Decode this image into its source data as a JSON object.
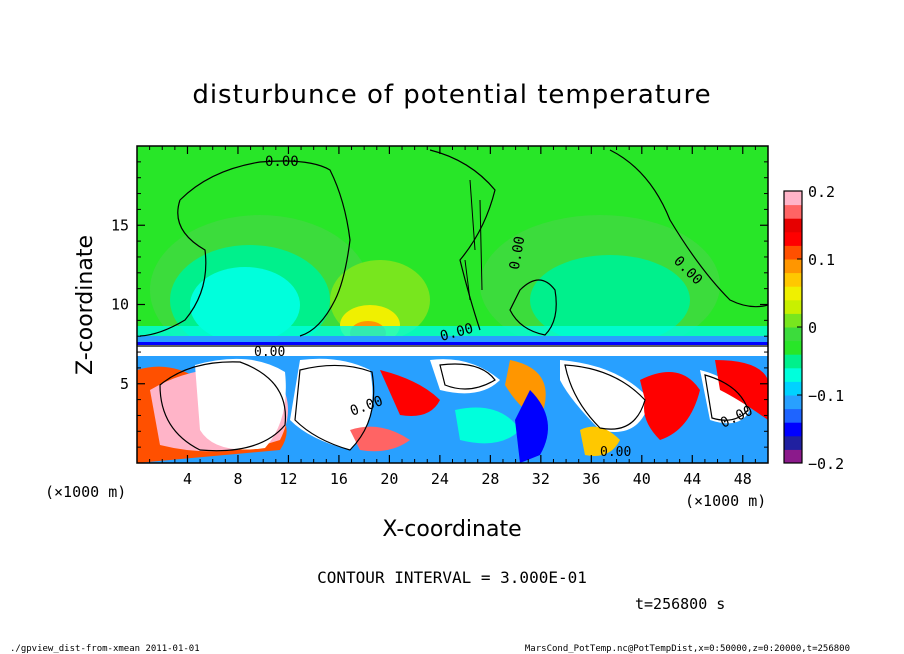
{
  "chart_data": {
    "type": "heatmap",
    "title": "disturbunce of potential temperature",
    "xlabel": "X-coordinate",
    "ylabel": "Z-coordinate",
    "x_unit": "(×1000 m)",
    "y_unit": "(×1000 m)",
    "xlim": [
      0,
      50
    ],
    "ylim": [
      0,
      20
    ],
    "x_ticks": [
      4,
      8,
      12,
      16,
      20,
      24,
      28,
      32,
      36,
      40,
      44,
      48
    ],
    "y_ticks": [
      5,
      10,
      15
    ],
    "colorbar": {
      "min": -0.2,
      "max": 0.2,
      "ticks": [
        "0.2",
        "0.1",
        "0",
        "−0.1",
        "−0.2"
      ],
      "tick_values": [
        0.2,
        0.1,
        0,
        -0.1,
        -0.2
      ],
      "colors": [
        "#8b1a8b",
        "#2020a0",
        "#0000ff",
        "#1e64ff",
        "#28a0ff",
        "#00d2ff",
        "#00ffdc",
        "#00f08c",
        "#28e628",
        "#3cdc3c",
        "#78e61e",
        "#c8f000",
        "#f0f000",
        "#ffc800",
        "#ff9600",
        "#ff5000",
        "#ff0000",
        "#e60000",
        "#ff6464",
        "#ffb4c8"
      ]
    },
    "contour_labels": [
      "0.00",
      "0.00",
      "0.00",
      "0.00",
      "0.00",
      "0.00",
      "0.00",
      "0.00"
    ],
    "annotations": {
      "contour_interval": "CONTOUR INTERVAL = 3.000E-01",
      "time": "t=256800 s",
      "footer_left": "./gpview_dist-from-xmean   2011-01-01",
      "footer_right": "MarsCond_PotTemp.nc@PotTempDist,x=0:50000,z=0:20000,t=256800"
    }
  }
}
